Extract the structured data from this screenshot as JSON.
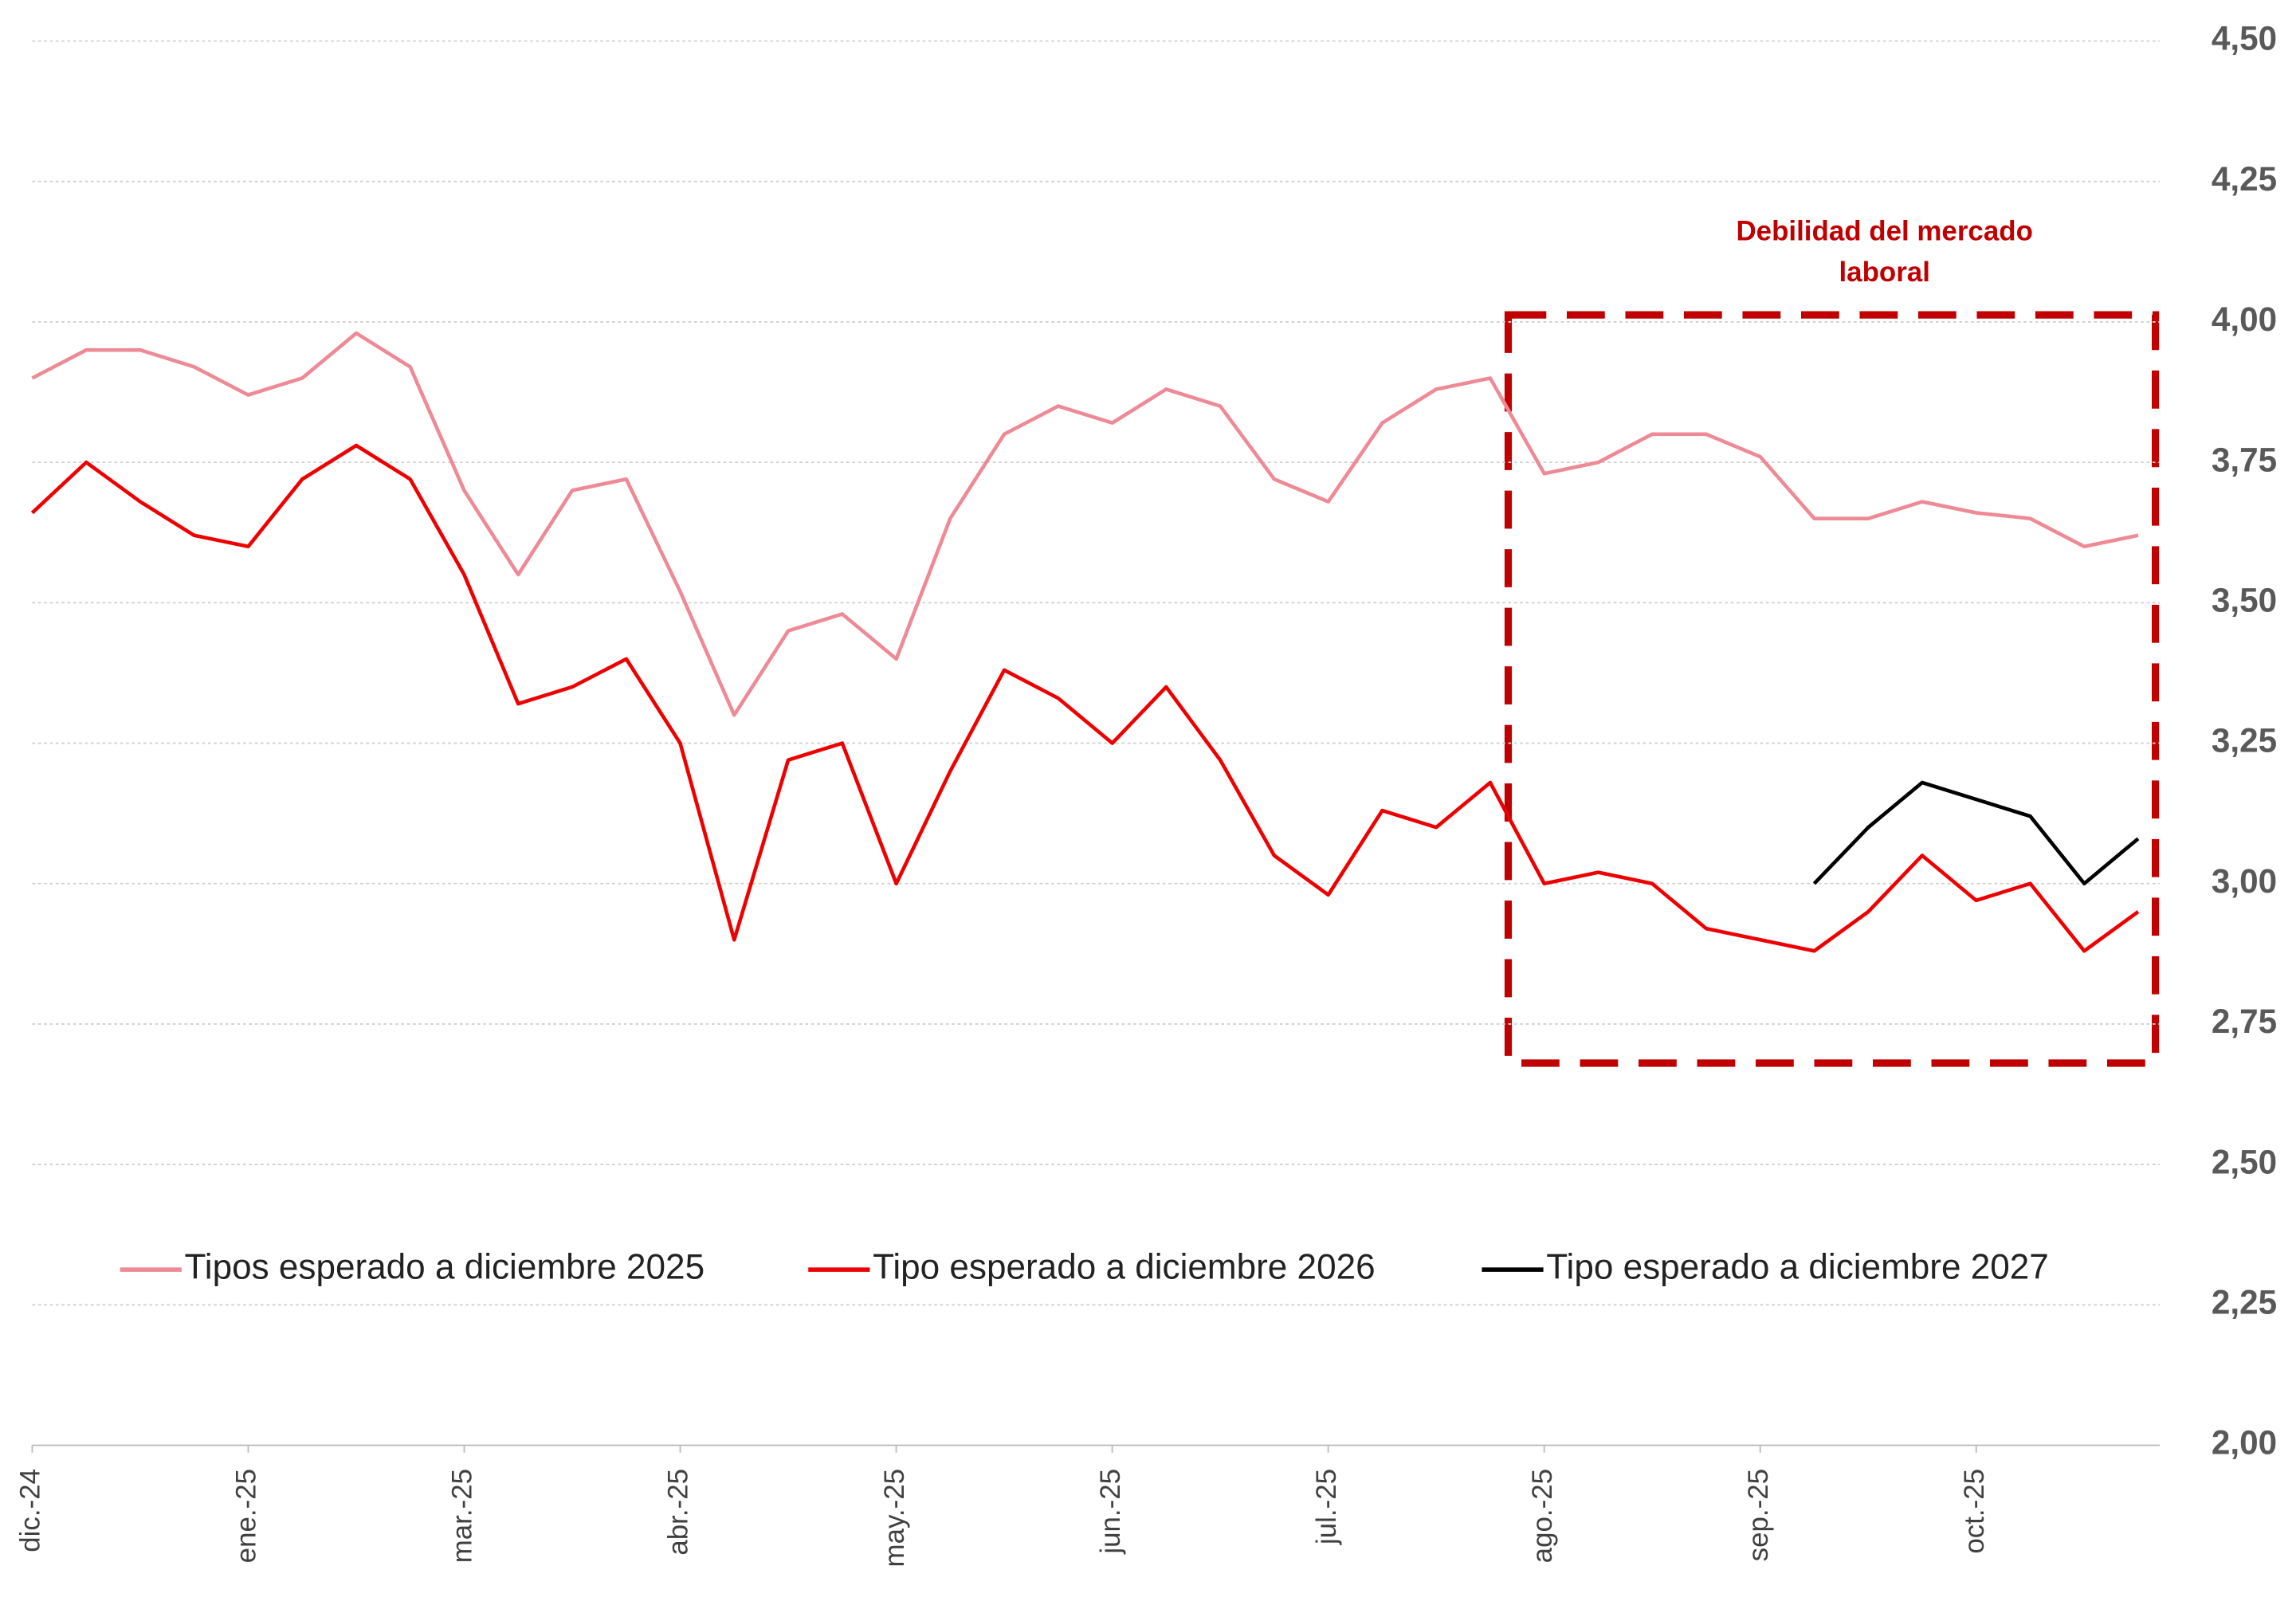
{
  "chart_data": {
    "type": "line",
    "annotation": [
      "Debilidad del mercado",
      "laboral"
    ],
    "xlim": [
      0,
      9.85
    ],
    "xticks": [
      {
        "value": 0,
        "label": "dic.-24"
      },
      {
        "value": 1,
        "label": "ene.-25"
      },
      {
        "value": 2,
        "label": "mar.-25"
      },
      {
        "value": 3,
        "label": "abr.-25"
      },
      {
        "value": 4,
        "label": "may.-25"
      },
      {
        "value": 5,
        "label": "jun.-25"
      },
      {
        "value": 6,
        "label": "jul.-25"
      },
      {
        "value": 7,
        "label": "ago.-25"
      },
      {
        "value": 8,
        "label": "sep.-25"
      },
      {
        "value": 9,
        "label": "oct.-25"
      }
    ],
    "ylim": [
      2,
      4.5
    ],
    "yticks": [
      {
        "value": 2,
        "label": "2,00"
      },
      {
        "value": 2.25,
        "label": "2,25"
      },
      {
        "value": 2.5,
        "label": "2,50"
      },
      {
        "value": 2.75,
        "label": "2,75"
      },
      {
        "value": 3,
        "label": "3,00"
      },
      {
        "value": 3.25,
        "label": "3,25"
      },
      {
        "value": 3.5,
        "label": "3,50"
      },
      {
        "value": 3.75,
        "label": "3,75"
      },
      {
        "value": 4,
        "label": "4,00"
      },
      {
        "value": 4.25,
        "label": "4,25"
      },
      {
        "value": 4.5,
        "label": "4,50"
      }
    ],
    "grid": true,
    "x": [
      0,
      0.25,
      0.5,
      0.75,
      1,
      1.25,
      1.5,
      1.75,
      2,
      2.25,
      2.5,
      2.75,
      3,
      3.25,
      3.5,
      3.75,
      4,
      4.25,
      4.5,
      4.75,
      5,
      5.25,
      5.5,
      5.75,
      6,
      6.25,
      6.5,
      6.75,
      7,
      7.25,
      7.5,
      7.75,
      8,
      8.25,
      8.5,
      8.75,
      9,
      9.25,
      9.5,
      9.75
    ],
    "series": [
      {
        "name": "Tipos esperado a diciembre 2025",
        "color": "#ee8a95",
        "values": [
          3.9,
          3.95,
          3.95,
          3.92,
          3.87,
          3.9,
          3.98,
          3.92,
          3.7,
          3.55,
          3.7,
          3.72,
          3.52,
          3.3,
          3.45,
          3.48,
          3.4,
          3.65,
          3.8,
          3.85,
          3.82,
          3.88,
          3.85,
          3.72,
          3.68,
          3.82,
          3.88,
          3.9,
          3.73,
          3.75,
          3.8,
          3.8,
          3.76,
          3.65,
          3.65,
          3.68,
          3.66,
          3.65,
          3.6,
          3.62
        ]
      },
      {
        "name": "Tipo esperado a diciembre 2026",
        "color": "#ee0000",
        "values": [
          3.66,
          3.75,
          3.68,
          3.62,
          3.6,
          3.72,
          3.78,
          3.72,
          3.55,
          3.32,
          3.35,
          3.4,
          3.25,
          2.9,
          3.22,
          3.25,
          3.0,
          3.2,
          3.38,
          3.33,
          3.25,
          3.35,
          3.22,
          3.05,
          2.98,
          3.13,
          3.1,
          3.18,
          3.0,
          3.02,
          3.0,
          2.92,
          2.9,
          2.88,
          2.95,
          3.05,
          2.97,
          3.0,
          2.88,
          2.95
        ]
      },
      {
        "name": "Tipo esperado a diciembre 2027",
        "color": "#000000",
        "values": [
          null,
          null,
          null,
          null,
          null,
          null,
          null,
          null,
          null,
          null,
          null,
          null,
          null,
          null,
          null,
          null,
          null,
          null,
          null,
          null,
          null,
          null,
          null,
          null,
          null,
          null,
          null,
          null,
          null,
          null,
          null,
          null,
          null,
          3.0,
          3.1,
          3.18,
          3.15,
          3.12,
          3.0,
          3.08
        ]
      }
    ]
  }
}
